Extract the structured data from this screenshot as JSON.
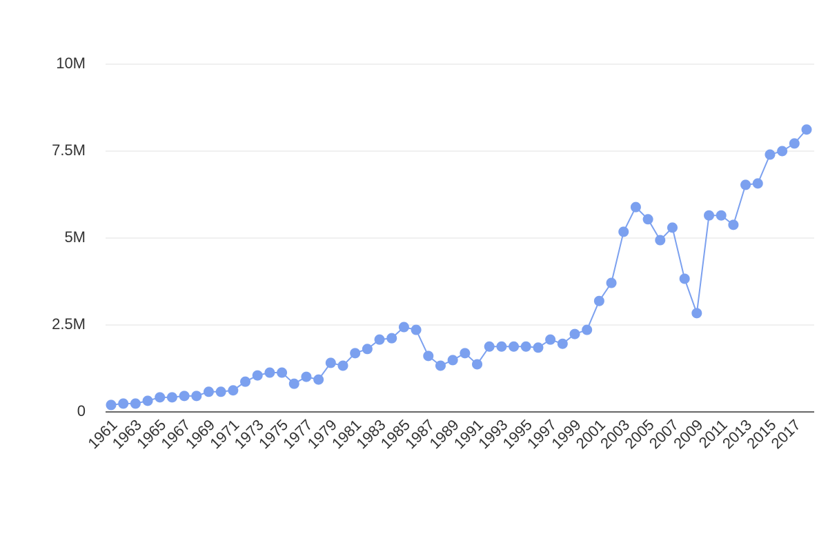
{
  "chart_data": {
    "type": "line",
    "color": "#7ba0ef",
    "categories": [
      "1961",
      null,
      "1963",
      null,
      "1965",
      null,
      "1967",
      null,
      "1969",
      null,
      "1971",
      null,
      "1973",
      null,
      "1975",
      null,
      "1977",
      null,
      "1979",
      null,
      "1981",
      null,
      "1983",
      null,
      "1985",
      null,
      "1987",
      null,
      "1989",
      null,
      "1991",
      null,
      "1993",
      null,
      "1995",
      null,
      "1997",
      null,
      "1999",
      null,
      "2001",
      null,
      "2003",
      null,
      "2005",
      null,
      "2007",
      null,
      "2009",
      null,
      "2011",
      null,
      "2013",
      null,
      "2015",
      null,
      "2017",
      null
    ],
    "values": [
      200000,
      240000,
      240000,
      320000,
      420000,
      420000,
      460000,
      460000,
      580000,
      580000,
      620000,
      870000,
      1050000,
      1130000,
      1130000,
      810000,
      1010000,
      930000,
      1410000,
      1330000,
      1690000,
      1810000,
      2080000,
      2120000,
      2440000,
      2360000,
      1610000,
      1330000,
      1490000,
      1690000,
      1370000,
      1880000,
      1880000,
      1880000,
      1880000,
      1850000,
      2080000,
      1960000,
      2240000,
      2360000,
      3190000,
      3710000,
      5180000,
      5890000,
      5540000,
      4940000,
      5300000,
      3830000,
      2840000,
      5650000,
      5650000,
      5380000,
      6530000,
      6570000,
      7400000,
      7500000,
      7720000,
      8120000
    ],
    "ylim": [
      0,
      10000000
    ],
    "yticks": [
      0,
      {
        "value": 2500000,
        "label": "2.5M"
      },
      {
        "value": 5000000,
        "label": "5M"
      },
      {
        "value": 7500000,
        "label": "7.5M"
      },
      {
        "value": 10000000,
        "label": "10M"
      }
    ],
    "grid": true
  }
}
